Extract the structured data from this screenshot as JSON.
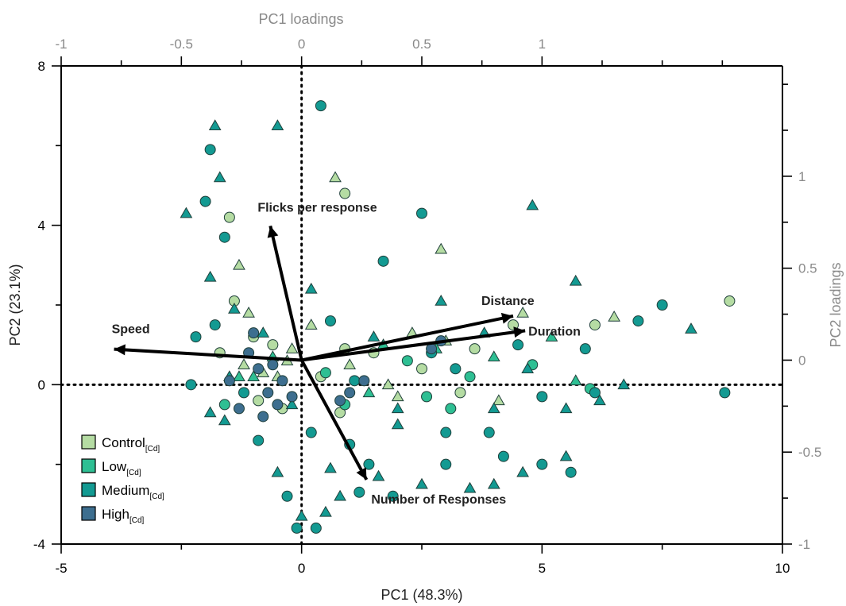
{
  "chart_data": {
    "type": "scatter",
    "title": "",
    "xlabel": "PC1 (48.3%)",
    "ylabel": "PC2 (23.1%)",
    "x2label": "PC1 loadings",
    "y2label": "PC2 loadings",
    "xlim": [
      -5,
      10
    ],
    "ylim": [
      -4,
      8
    ],
    "x2lim": [
      -1,
      2
    ],
    "y2lim": [
      -1,
      1.6
    ],
    "x_ticks": [
      "-5",
      "0",
      "5",
      "10"
    ],
    "y_ticks": [
      "8",
      "4",
      "0",
      "-4"
    ],
    "x2_ticks": [
      "-1",
      "-0.5",
      "0",
      "0.5",
      "1"
    ],
    "y2_ticks": [
      "1",
      "0.5",
      "0",
      "-0.5",
      "-1"
    ],
    "reference_lines": {
      "x": 0,
      "y": 0,
      "style": "dotted"
    },
    "legend": {
      "placement": "bottom-left",
      "entries": [
        {
          "label": "Control",
          "sub": "[Cd]",
          "color": "#b5dca3"
        },
        {
          "label": "Low",
          "sub": "[Cd]",
          "color": "#2ebf93"
        },
        {
          "label": "Medium",
          "sub": "[Cd]",
          "color": "#139a92"
        },
        {
          "label": "High",
          "sub": "[Cd]",
          "color": "#3d6e8f"
        }
      ]
    },
    "loadings": [
      {
        "name": "Speed",
        "x": -0.78,
        "y": 0.06
      },
      {
        "name": "Flicks per response",
        "x": -0.13,
        "y": 0.73
      },
      {
        "name": "Distance",
        "x": 0.88,
        "y": 0.24
      },
      {
        "name": "Duration",
        "x": 0.93,
        "y": 0.16
      },
      {
        "name": "Number of Responses",
        "x": 0.27,
        "y": -0.65
      }
    ],
    "series": [
      {
        "name": "Control",
        "marker": "mixed",
        "color": "#b5dca3",
        "points": [
          [
            -1.2,
            0.5
          ],
          [
            -1.0,
            1.2
          ],
          [
            -0.8,
            0.3
          ],
          [
            -0.6,
            1.0
          ],
          [
            -0.5,
            0.2
          ],
          [
            -1.4,
            2.1
          ],
          [
            -1.3,
            3.0
          ],
          [
            -1.5,
            4.2
          ],
          [
            -1.1,
            1.8
          ],
          [
            -0.9,
            -0.4
          ],
          [
            -0.3,
            0.6
          ],
          [
            0.4,
            0.2
          ],
          [
            1.0,
            0.5
          ],
          [
            1.5,
            0.8
          ],
          [
            2.0,
            -0.3
          ],
          [
            2.5,
            0.4
          ],
          [
            3.0,
            1.1
          ],
          [
            3.6,
            0.9
          ],
          [
            4.1,
            -0.4
          ],
          [
            4.4,
            1.5
          ],
          [
            4.6,
            1.8
          ],
          [
            6.1,
            1.5
          ],
          [
            6.5,
            1.7
          ],
          [
            8.9,
            2.1
          ],
          [
            2.9,
            3.4
          ],
          [
            0.8,
            -0.7
          ],
          [
            0.2,
            1.5
          ],
          [
            -0.4,
            -0.6
          ],
          [
            1.8,
            0.0
          ],
          [
            3.3,
            -0.2
          ],
          [
            -0.2,
            0.9
          ],
          [
            0.9,
            0.9
          ],
          [
            2.3,
            1.3
          ],
          [
            -1.7,
            0.8
          ],
          [
            0.7,
            5.2
          ],
          [
            0.9,
            4.8
          ]
        ]
      },
      {
        "name": "Low",
        "marker": "mixed",
        "color": "#2ebf93",
        "points": [
          [
            -1.0,
            0.2
          ],
          [
            0.5,
            0.3
          ],
          [
            1.4,
            -0.2
          ],
          [
            2.2,
            0.6
          ],
          [
            2.8,
            0.9
          ],
          [
            3.5,
            0.2
          ],
          [
            4.0,
            0.7
          ],
          [
            4.8,
            0.5
          ],
          [
            5.2,
            1.2
          ],
          [
            -1.6,
            -0.5
          ],
          [
            -0.6,
            0.7
          ],
          [
            0.9,
            -0.5
          ],
          [
            1.7,
            1.0
          ],
          [
            3.1,
            -0.6
          ],
          [
            5.7,
            0.1
          ],
          [
            6.0,
            -0.1
          ],
          [
            -1.3,
            0.2
          ],
          [
            2.6,
            -0.3
          ]
        ]
      },
      {
        "name": "Medium",
        "marker": "mixed",
        "color": "#139a92",
        "points": [
          [
            -1.8,
            6.5
          ],
          [
            -1.9,
            5.9
          ],
          [
            -1.7,
            5.2
          ],
          [
            -2.0,
            4.6
          ],
          [
            -2.4,
            4.3
          ],
          [
            -1.6,
            3.7
          ],
          [
            -0.5,
            6.5
          ],
          [
            0.4,
            7.0
          ],
          [
            4.8,
            4.5
          ],
          [
            2.5,
            4.3
          ],
          [
            -1.9,
            2.7
          ],
          [
            -1.8,
            1.5
          ],
          [
            -1.5,
            0.2
          ],
          [
            -2.3,
            0.0
          ],
          [
            -1.6,
            -0.9
          ],
          [
            -0.9,
            -1.4
          ],
          [
            -0.5,
            -2.2
          ],
          [
            -0.3,
            -2.8
          ],
          [
            0.0,
            -3.3
          ],
          [
            0.3,
            -3.6
          ],
          [
            0.5,
            -3.2
          ],
          [
            -0.1,
            -3.6
          ],
          [
            0.8,
            -2.8
          ],
          [
            1.2,
            -2.7
          ],
          [
            1.6,
            -2.3
          ],
          [
            1.4,
            -2.0
          ],
          [
            2.5,
            -2.5
          ],
          [
            3.0,
            -2.0
          ],
          [
            3.5,
            -2.6
          ],
          [
            4.2,
            -1.8
          ],
          [
            4.6,
            -2.2
          ],
          [
            5.0,
            -2.0
          ],
          [
            5.5,
            -1.8
          ],
          [
            5.6,
            -2.2
          ],
          [
            4.0,
            -2.5
          ],
          [
            1.0,
            -1.5
          ],
          [
            2.0,
            -1.0
          ],
          [
            3.0,
            -1.2
          ],
          [
            4.0,
            -0.6
          ],
          [
            5.0,
            -0.3
          ],
          [
            5.5,
            -0.6
          ],
          [
            6.1,
            -0.2
          ],
          [
            6.7,
            0.0
          ],
          [
            7.5,
            2.0
          ],
          [
            8.1,
            1.4
          ],
          [
            8.8,
            -0.2
          ],
          [
            5.7,
            2.6
          ],
          [
            4.5,
            1.0
          ],
          [
            3.8,
            1.3
          ],
          [
            2.7,
            0.8
          ],
          [
            1.5,
            1.2
          ],
          [
            0.6,
            1.6
          ],
          [
            0.2,
            2.4
          ],
          [
            1.7,
            3.1
          ],
          [
            -0.8,
            1.3
          ],
          [
            -1.2,
            -0.2
          ],
          [
            -0.2,
            -0.5
          ],
          [
            1.1,
            0.1
          ],
          [
            2.0,
            -0.6
          ],
          [
            3.2,
            0.4
          ],
          [
            -1.4,
            1.9
          ],
          [
            -2.2,
            1.2
          ],
          [
            -1.9,
            -0.7
          ],
          [
            0.2,
            -1.2
          ],
          [
            0.6,
            -2.1
          ],
          [
            1.9,
            -2.8
          ],
          [
            2.9,
            2.1
          ],
          [
            3.9,
            -1.2
          ],
          [
            4.7,
            0.4
          ],
          [
            5.9,
            0.9
          ],
          [
            6.2,
            -0.4
          ],
          [
            7.0,
            1.6
          ]
        ]
      },
      {
        "name": "High",
        "marker": "circle",
        "color": "#3d6e8f",
        "points": [
          [
            -1.1,
            0.8
          ],
          [
            -0.9,
            0.4
          ],
          [
            -0.7,
            -0.2
          ],
          [
            -1.3,
            -0.6
          ],
          [
            -0.4,
            0.1
          ],
          [
            -0.2,
            -0.3
          ],
          [
            -1.5,
            0.1
          ],
          [
            -0.8,
            -0.8
          ],
          [
            0.8,
            -0.4
          ],
          [
            1.0,
            -0.2
          ],
          [
            1.3,
            0.1
          ],
          [
            2.7,
            0.9
          ],
          [
            2.9,
            1.1
          ],
          [
            -0.6,
            0.5
          ],
          [
            -1.0,
            1.3
          ],
          [
            -0.5,
            -0.5
          ]
        ]
      }
    ]
  }
}
